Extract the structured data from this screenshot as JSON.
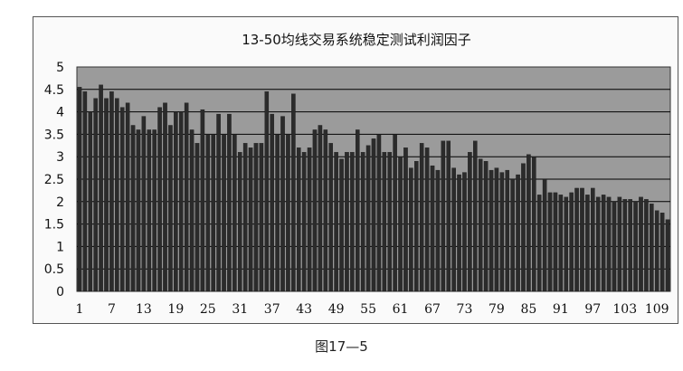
{
  "caption": "图17—5",
  "chart_data": {
    "type": "bar",
    "title": "13-50均线交易系统稳定测试利润因子",
    "xlabel": "",
    "ylabel": "",
    "ylim": [
      0,
      5
    ],
    "yticks": [
      "0",
      "0.5",
      "1",
      "1.5",
      "2",
      "2.5",
      "3",
      "3.5",
      "4",
      "4.5",
      "5"
    ],
    "xtick_labels": [
      "1",
      "7",
      "13",
      "19",
      "25",
      "31",
      "37",
      "43",
      "49",
      "55",
      "61",
      "67",
      "73",
      "79",
      "85",
      "91",
      "97",
      "103",
      "109"
    ],
    "grid": true,
    "legend": "none",
    "colors": {
      "bar": "#2b2b2b",
      "grid": "#000000",
      "plot_bg": "#9b9b9b"
    },
    "x": [
      1,
      2,
      3,
      4,
      5,
      6,
      7,
      8,
      9,
      10,
      11,
      12,
      13,
      14,
      15,
      16,
      17,
      18,
      19,
      20,
      21,
      22,
      23,
      24,
      25,
      26,
      27,
      28,
      29,
      30,
      31,
      32,
      33,
      34,
      35,
      36,
      37,
      38,
      39,
      40,
      41,
      42,
      43,
      44,
      45,
      46,
      47,
      48,
      49,
      50,
      51,
      52,
      53,
      54,
      55,
      56,
      57,
      58,
      59,
      60,
      61,
      62,
      63,
      64,
      65,
      66,
      67,
      68,
      69,
      70,
      71,
      72,
      73,
      74,
      75,
      76,
      77,
      78,
      79,
      80,
      81,
      82,
      83,
      84,
      85,
      86,
      87,
      88,
      89,
      90,
      91,
      92,
      93,
      94,
      95,
      96,
      97,
      98,
      99,
      100,
      101,
      102,
      103,
      104,
      105,
      106,
      107,
      108,
      109,
      110,
      111
    ],
    "values": [
      4.55,
      4.45,
      4.0,
      4.3,
      4.6,
      4.3,
      4.45,
      4.3,
      4.1,
      4.2,
      3.7,
      3.6,
      3.9,
      3.6,
      3.6,
      4.1,
      4.2,
      3.7,
      4.0,
      4.0,
      4.2,
      3.6,
      3.3,
      4.05,
      3.5,
      3.5,
      3.95,
      3.5,
      3.95,
      3.5,
      3.1,
      3.3,
      3.2,
      3.3,
      3.3,
      4.45,
      3.95,
      3.5,
      3.9,
      3.5,
      4.4,
      3.2,
      3.1,
      3.2,
      3.6,
      3.7,
      3.6,
      3.3,
      3.1,
      2.95,
      3.1,
      3.1,
      3.6,
      3.1,
      3.25,
      3.4,
      3.5,
      3.1,
      3.1,
      3.5,
      3.0,
      3.2,
      2.75,
      2.9,
      3.3,
      3.2,
      2.8,
      2.7,
      3.35,
      3.35,
      2.75,
      2.6,
      2.65,
      3.1,
      3.35,
      2.95,
      2.9,
      2.7,
      2.75,
      2.65,
      2.7,
      2.5,
      2.6,
      2.85,
      3.05,
      3.0,
      2.15,
      2.5,
      2.2,
      2.2,
      2.15,
      2.1,
      2.2,
      2.3,
      2.3,
      2.15,
      2.3,
      2.1,
      2.15,
      2.1,
      2.0,
      2.1,
      2.05,
      2.05,
      2.0,
      2.1,
      2.05,
      1.95,
      1.8,
      1.75,
      1.6
    ]
  }
}
